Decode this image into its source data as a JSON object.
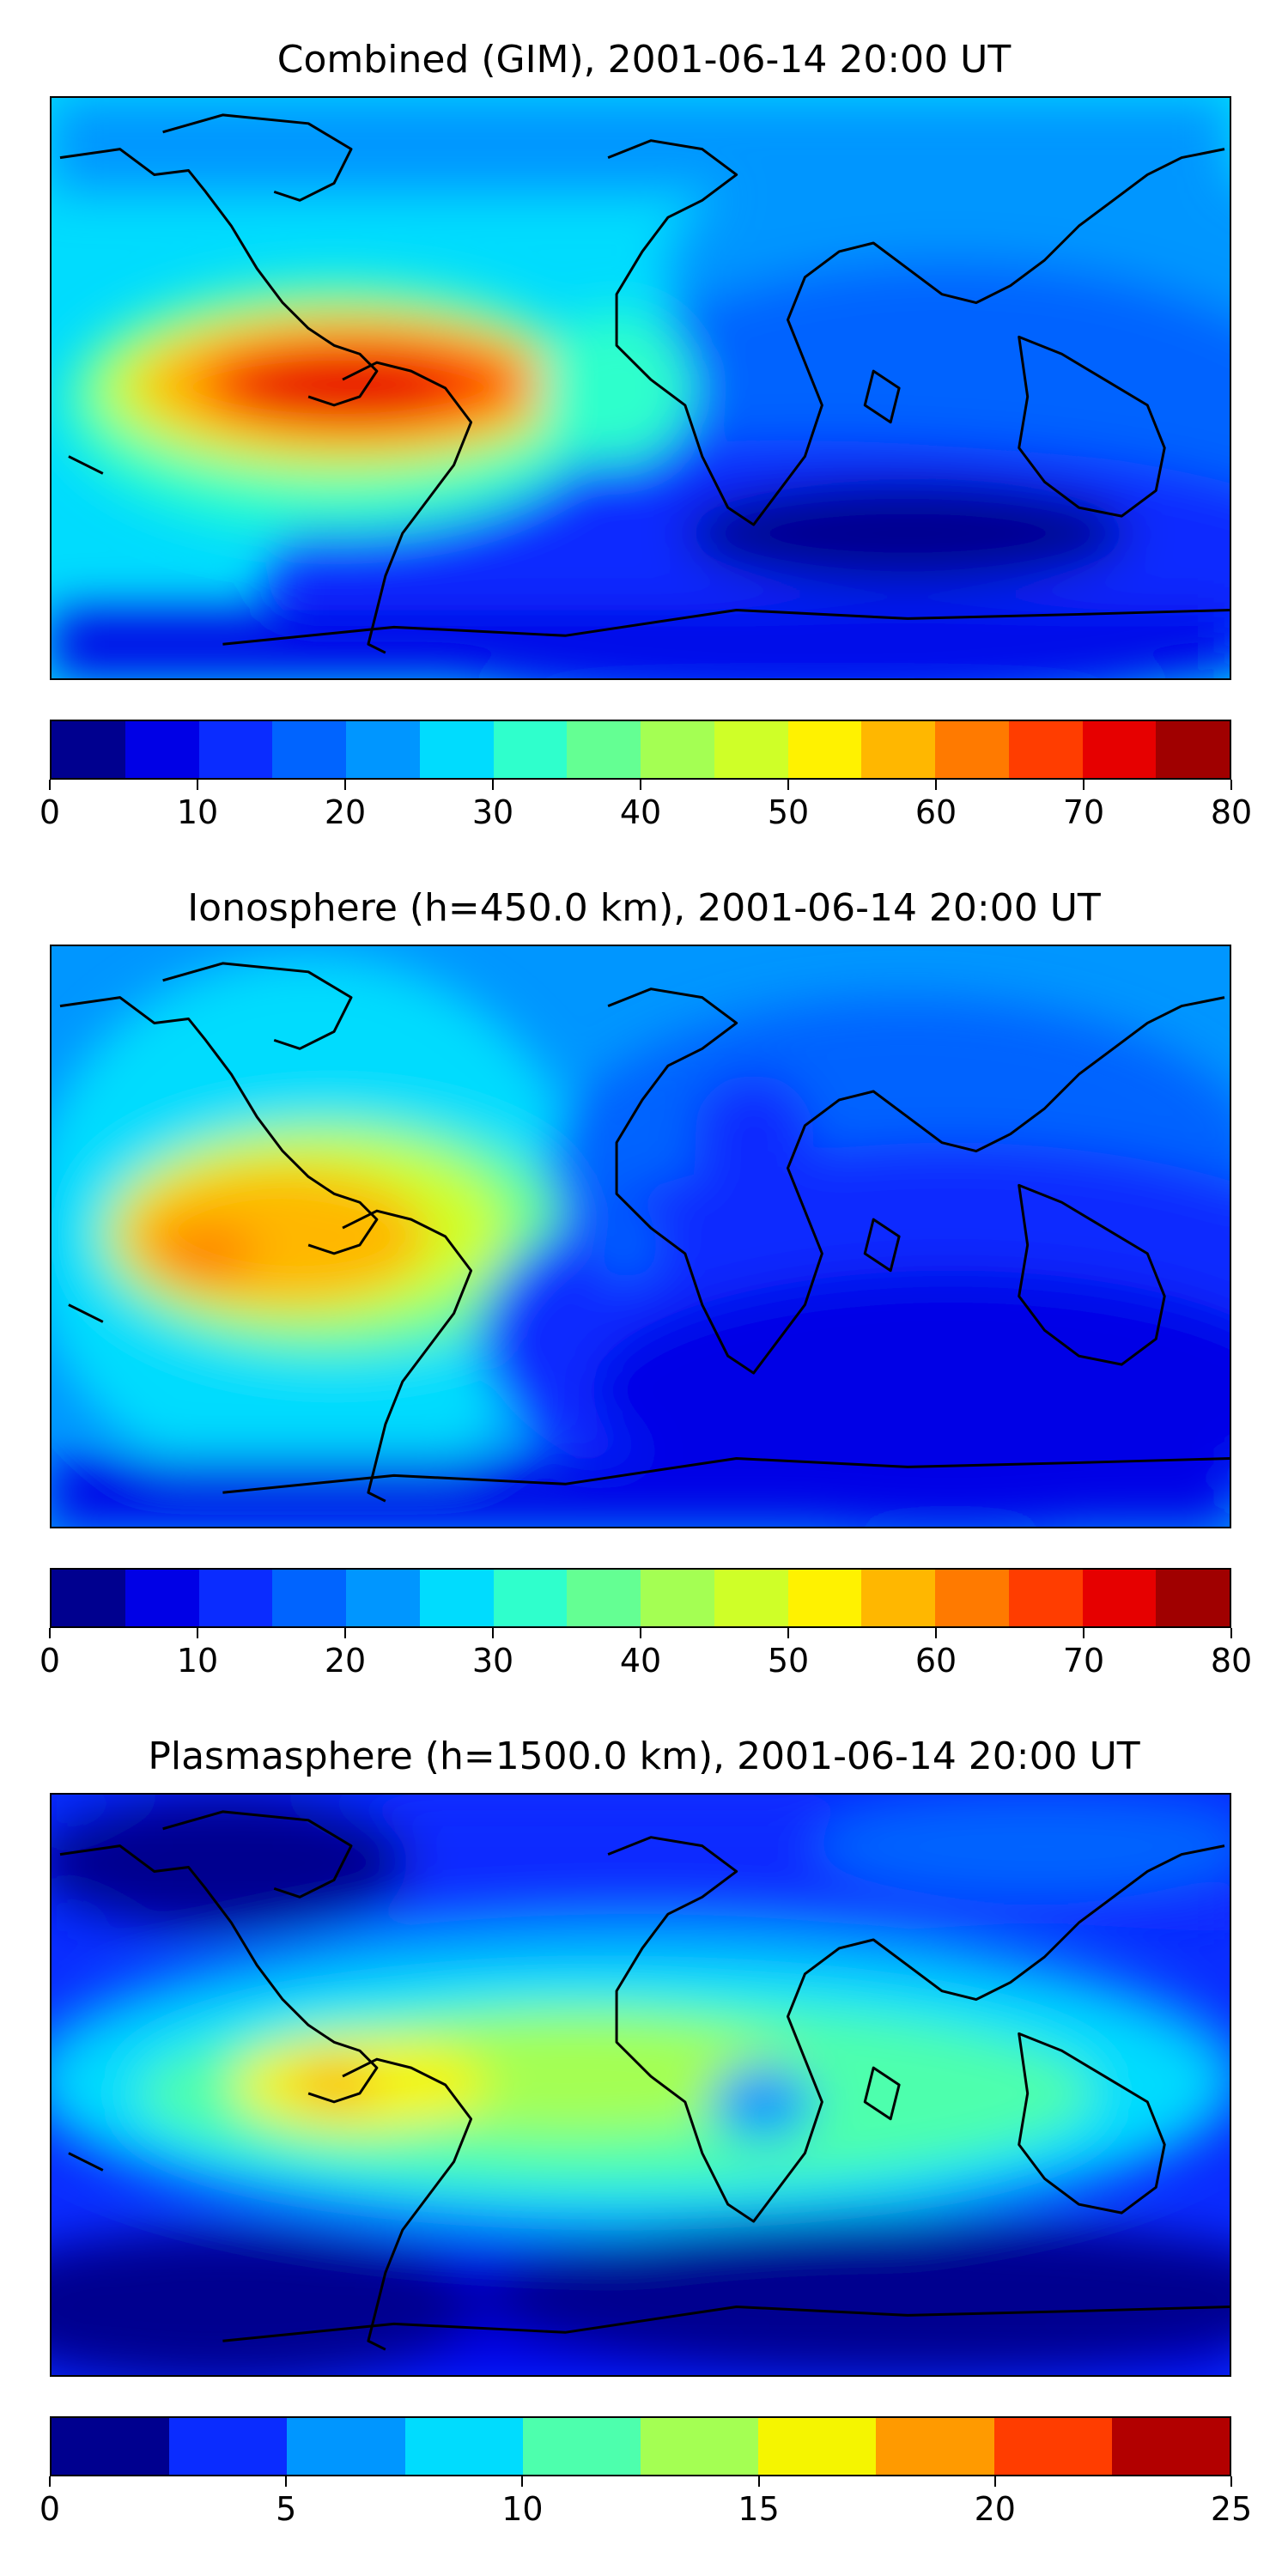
{
  "panels": [
    {
      "title": "Combined (GIM), 2001-06-14 20:00 UT",
      "colorbar": {
        "tick_labels": [
          "0",
          "10",
          "20",
          "30",
          "40",
          "50",
          "60",
          "70",
          "80"
        ],
        "min": 0,
        "max": 80,
        "step": 5,
        "colors": [
          "#00008f",
          "#0000e6",
          "#0a2cff",
          "#0064ff",
          "#0096ff",
          "#00dcfe",
          "#2fffcc",
          "#64ff93",
          "#a4ff53",
          "#cfff28",
          "#fff200",
          "#ffb700",
          "#ff7a00",
          "#ff3d00",
          "#e60000",
          "#a00000"
        ]
      }
    },
    {
      "title": "Ionosphere  (h=450.0 km), 2001-06-14 20:00 UT",
      "colorbar": {
        "tick_labels": [
          "0",
          "10",
          "20",
          "30",
          "40",
          "50",
          "60",
          "70",
          "80"
        ],
        "min": 0,
        "max": 80,
        "step": 5,
        "colors": [
          "#00008f",
          "#0000e6",
          "#0a2cff",
          "#0064ff",
          "#0096ff",
          "#00dcfe",
          "#2fffcc",
          "#64ff93",
          "#a4ff53",
          "#cfff28",
          "#fff200",
          "#ffb700",
          "#ff7a00",
          "#ff3d00",
          "#e60000",
          "#a00000"
        ]
      }
    },
    {
      "title": "Plasmasphere (h=1500.0 km), 2001-06-14 20:00 UT",
      "colorbar": {
        "tick_labels": [
          "0",
          "5",
          "10",
          "15",
          "20",
          "25"
        ],
        "min": 0,
        "max": 25,
        "step": 2.5,
        "colors": [
          "#00008f",
          "#0a2cff",
          "#0096ff",
          "#00dcfe",
          "#4dffad",
          "#a4ff53",
          "#f5f500",
          "#ff9a00",
          "#ff3d00",
          "#b20000"
        ]
      }
    }
  ]
}
